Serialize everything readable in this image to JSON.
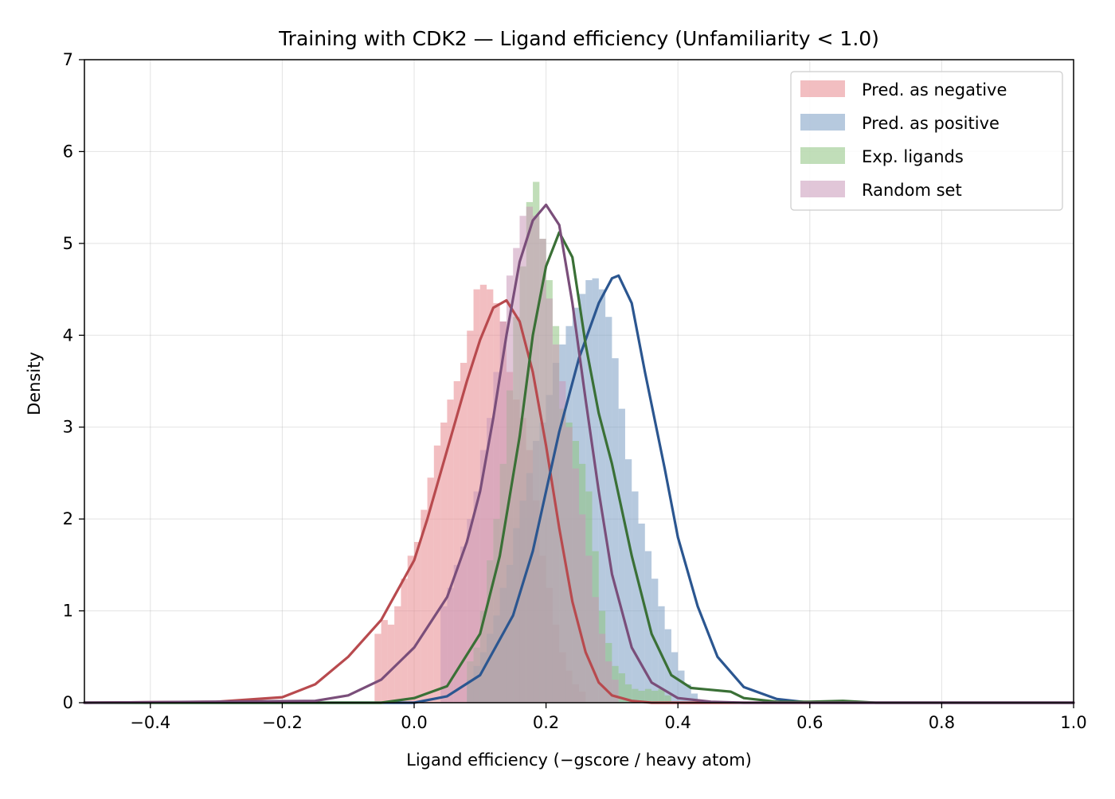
{
  "chart_data": {
    "type": "area",
    "title": "Training with CDK2 — Ligand efficiency (Unfamiliarity < 1.0)",
    "xlabel": "Ligand efficiency (−gscore / heavy atom)",
    "ylabel": "Density",
    "xlim": [
      -0.5,
      1.0
    ],
    "ylim": [
      0,
      7
    ],
    "xticks": [
      -0.4,
      -0.2,
      0.0,
      0.2,
      0.4,
      0.6,
      0.8,
      1.0
    ],
    "xtick_labels": [
      "−0.4",
      "−0.2",
      "0.0",
      "0.2",
      "0.4",
      "0.6",
      "0.8",
      "1.0"
    ],
    "yticks": [
      0,
      1,
      2,
      3,
      4,
      5,
      6,
      7
    ],
    "ytick_labels": [
      "0",
      "1",
      "2",
      "3",
      "4",
      "5",
      "6",
      "7"
    ],
    "grid": true,
    "legend_position": "top-right",
    "series": [
      {
        "name": "Pred. as negative",
        "hist_color": "#e8888e",
        "kde_color": "#b84a4e",
        "kde": {
          "x": [
            -0.5,
            -0.3,
            -0.2,
            -0.15,
            -0.1,
            -0.05,
            0.0,
            0.02,
            0.05,
            0.08,
            0.1,
            0.12,
            0.14,
            0.16,
            0.18,
            0.2,
            0.22,
            0.24,
            0.26,
            0.28,
            0.3,
            0.33,
            0.36,
            0.4,
            0.5,
            1.0
          ],
          "y": [
            0.0,
            0.01,
            0.06,
            0.2,
            0.5,
            0.9,
            1.55,
            2.0,
            2.75,
            3.5,
            3.95,
            4.3,
            4.38,
            4.15,
            3.6,
            2.8,
            1.9,
            1.1,
            0.55,
            0.22,
            0.08,
            0.02,
            0.0,
            0.0,
            0.0,
            0.0
          ]
        },
        "hist": {
          "bin_start": -0.06,
          "bin_width": 0.01,
          "values": [
            0.75,
            0.9,
            0.85,
            1.05,
            1.35,
            1.6,
            1.75,
            2.1,
            2.45,
            2.8,
            3.05,
            3.3,
            3.5,
            3.7,
            4.05,
            4.5,
            4.55,
            4.5,
            4.35,
            4.15,
            3.6,
            3.3,
            3.1,
            2.75,
            2.2,
            1.6,
            1.25,
            0.85,
            0.55,
            0.35,
            0.2,
            0.12
          ]
        }
      },
      {
        "name": "Pred. as positive",
        "hist_color": "#7a9cc3",
        "kde_color": "#2b5690",
        "kde": {
          "x": [
            -0.5,
            0.0,
            0.05,
            0.1,
            0.15,
            0.18,
            0.2,
            0.22,
            0.25,
            0.28,
            0.3,
            0.31,
            0.33,
            0.35,
            0.38,
            0.4,
            0.43,
            0.46,
            0.5,
            0.55,
            0.6,
            1.0
          ],
          "y": [
            0.0,
            0.0,
            0.07,
            0.3,
            0.95,
            1.65,
            2.3,
            2.95,
            3.75,
            4.35,
            4.62,
            4.65,
            4.35,
            3.6,
            2.55,
            1.8,
            1.05,
            0.5,
            0.17,
            0.04,
            0.0,
            0.0
          ]
        },
        "hist": {
          "bin_start": 0.08,
          "bin_width": 0.01,
          "values": [
            0.25,
            0.4,
            0.55,
            0.75,
            0.95,
            1.25,
            1.5,
            1.9,
            2.2,
            2.5,
            2.85,
            3.05,
            3.35,
            3.7,
            3.9,
            4.1,
            4.3,
            4.45,
            4.6,
            4.62,
            4.5,
            4.2,
            3.75,
            3.2,
            2.65,
            2.3,
            1.95,
            1.65,
            1.35,
            1.05,
            0.8,
            0.55,
            0.35,
            0.2,
            0.1
          ]
        }
      },
      {
        "name": "Exp. ligands",
        "hist_color": "#8ec27f",
        "kde_color": "#3a7036",
        "kde": {
          "x": [
            -0.5,
            -0.05,
            0.0,
            0.05,
            0.1,
            0.13,
            0.16,
            0.18,
            0.2,
            0.22,
            0.24,
            0.26,
            0.28,
            0.3,
            0.33,
            0.36,
            0.39,
            0.42,
            0.45,
            0.48,
            0.5,
            0.55,
            0.6,
            0.65,
            0.7,
            1.0
          ],
          "y": [
            0.0,
            0.0,
            0.05,
            0.18,
            0.75,
            1.6,
            2.9,
            4.0,
            4.75,
            5.12,
            4.85,
            3.9,
            3.15,
            2.6,
            1.6,
            0.75,
            0.3,
            0.16,
            0.14,
            0.12,
            0.05,
            0.01,
            0.01,
            0.02,
            0.0,
            0.0
          ]
        },
        "hist": {
          "bin_start": 0.08,
          "bin_width": 0.01,
          "values": [
            0.45,
            0.6,
            1.0,
            1.55,
            2.0,
            2.6,
            3.4,
            4.2,
            4.75,
            5.45,
            5.67,
            5.05,
            4.6,
            4.1,
            3.2,
            3.05,
            2.85,
            2.6,
            2.3,
            1.65,
            1.0,
            0.65,
            0.4,
            0.32,
            0.2,
            0.15,
            0.13,
            0.15,
            0.13,
            0.15,
            0.08
          ]
        }
      },
      {
        "name": "Random set",
        "hist_color": "#c998b8",
        "kde_color": "#7a4e7a",
        "kde": {
          "x": [
            -0.5,
            -0.15,
            -0.1,
            -0.05,
            0.0,
            0.05,
            0.08,
            0.1,
            0.12,
            0.14,
            0.16,
            0.18,
            0.2,
            0.22,
            0.24,
            0.26,
            0.28,
            0.3,
            0.33,
            0.36,
            0.4,
            0.45,
            0.5,
            1.0
          ],
          "y": [
            0.0,
            0.02,
            0.08,
            0.25,
            0.6,
            1.15,
            1.75,
            2.3,
            3.1,
            4.0,
            4.8,
            5.25,
            5.42,
            5.2,
            4.35,
            3.3,
            2.3,
            1.4,
            0.6,
            0.22,
            0.05,
            0.01,
            0.0,
            0.0
          ]
        },
        "hist": {
          "bin_start": 0.04,
          "bin_width": 0.01,
          "values": [
            1.05,
            1.25,
            1.5,
            1.7,
            2.0,
            2.3,
            2.75,
            3.1,
            3.6,
            4.15,
            4.65,
            4.95,
            5.3,
            5.4,
            5.3,
            5.05,
            4.4,
            3.9,
            3.5,
            3.0,
            2.55,
            2.05,
            1.6,
            1.15,
            0.75,
            0.45,
            0.25
          ]
        }
      }
    ]
  }
}
